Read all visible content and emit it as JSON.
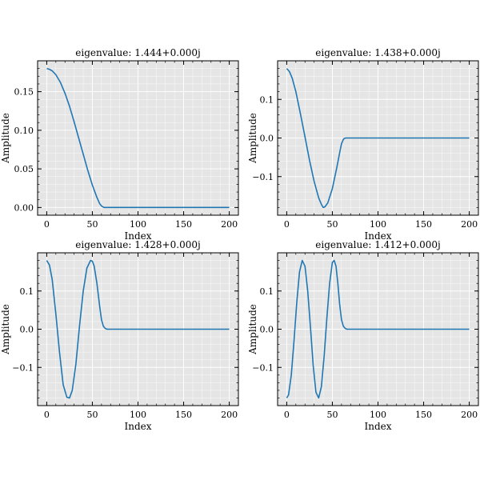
{
  "chart_data": [
    {
      "type": "line",
      "title": "eigenvalue: 1.444+0.000j",
      "xlabel": "Index",
      "ylabel": "Amplitude",
      "xlim": [
        -10,
        210
      ],
      "ylim": [
        -0.01,
        0.19
      ],
      "xticks": [
        0,
        50,
        100,
        150,
        200
      ],
      "yticks": [
        0.0,
        0.05,
        0.1,
        0.15
      ],
      "ytick_labels": [
        "0.00",
        "0.05",
        "0.10",
        "0.15"
      ],
      "grid": true,
      "series": [
        {
          "color": "#1f77b4",
          "x": [
            0,
            3,
            6,
            10,
            15,
            20,
            25,
            30,
            35,
            40,
            45,
            50,
            55,
            58,
            60,
            62,
            63,
            65,
            70,
            80,
            100,
            150,
            200
          ],
          "y": [
            0.18,
            0.179,
            0.177,
            0.172,
            0.162,
            0.148,
            0.131,
            0.111,
            0.09,
            0.069,
            0.048,
            0.029,
            0.013,
            0.005,
            0.002,
            0.0005,
            0.0,
            0.0,
            0.0,
            0.0,
            0.0,
            0.0,
            0.0
          ]
        }
      ]
    },
    {
      "type": "line",
      "title": "eigenvalue: 1.438+0.000j",
      "xlabel": "Index",
      "ylabel": "Amplitude",
      "xlim": [
        -10,
        210
      ],
      "ylim": [
        -0.2,
        0.2
      ],
      "xticks": [
        0,
        50,
        100,
        150,
        200
      ],
      "yticks": [
        -0.1,
        0.0,
        0.1
      ],
      "ytick_labels": [
        "−0.1",
        "0.0",
        "0.1"
      ],
      "grid": true,
      "series": [
        {
          "color": "#1f77b4",
          "x": [
            0,
            3,
            6,
            10,
            15,
            20,
            25,
            30,
            35,
            38,
            40,
            42,
            45,
            50,
            55,
            58,
            60,
            62,
            63,
            65,
            70,
            80,
            100,
            150,
            200
          ],
          "y": [
            0.18,
            0.172,
            0.155,
            0.12,
            0.063,
            0.003,
            -0.058,
            -0.112,
            -0.155,
            -0.172,
            -0.18,
            -0.178,
            -0.168,
            -0.131,
            -0.075,
            -0.038,
            -0.015,
            -0.004,
            -0.001,
            0.0,
            0.0,
            0.0,
            0.0,
            0.0,
            0.0
          ]
        }
      ]
    },
    {
      "type": "line",
      "title": "eigenvalue: 1.428+0.000j",
      "xlabel": "Index",
      "ylabel": "Amplitude",
      "xlim": [
        -10,
        210
      ],
      "ylim": [
        -0.2,
        0.2
      ],
      "xticks": [
        0,
        50,
        100,
        150,
        200
      ],
      "yticks": [
        -0.1,
        0.0,
        0.1
      ],
      "ytick_labels": [
        "−0.1",
        "0.0",
        "0.1"
      ],
      "grid": true,
      "series": [
        {
          "color": "#1f77b4",
          "x": [
            0,
            3,
            6,
            10,
            14,
            18,
            22,
            25,
            28,
            32,
            36,
            40,
            44,
            48,
            50,
            52,
            55,
            58,
            60,
            62,
            64,
            66,
            70,
            80,
            100,
            150,
            200
          ],
          "y": [
            0.18,
            0.168,
            0.13,
            0.04,
            -0.06,
            -0.145,
            -0.178,
            -0.18,
            -0.16,
            -0.09,
            0.01,
            0.1,
            0.16,
            0.18,
            0.178,
            0.165,
            0.12,
            0.06,
            0.025,
            0.008,
            0.002,
            0.0,
            0.0,
            0.0,
            0.0,
            0.0,
            0.0
          ]
        }
      ]
    },
    {
      "type": "line",
      "title": "eigenvalue: 1.412+0.000j",
      "xlabel": "Index",
      "ylabel": "Amplitude",
      "xlim": [
        -10,
        210
      ],
      "ylim": [
        -0.2,
        0.2
      ],
      "xticks": [
        0,
        50,
        100,
        150,
        200
      ],
      "yticks": [
        -0.1,
        0.0,
        0.1
      ],
      "ytick_labels": [
        "−0.1",
        "0.0",
        "0.1"
      ],
      "grid": true,
      "series": [
        {
          "color": "#1f77b4",
          "x": [
            0,
            2,
            5,
            8,
            11,
            14,
            17,
            20,
            23,
            26,
            29,
            32,
            35,
            38,
            41,
            44,
            47,
            50,
            52,
            54,
            56,
            58,
            60,
            62,
            64,
            66,
            70,
            80,
            100,
            150,
            200
          ],
          "y": [
            -0.18,
            -0.172,
            -0.12,
            -0.03,
            0.07,
            0.15,
            0.18,
            0.165,
            0.1,
            0.005,
            -0.095,
            -0.165,
            -0.18,
            -0.15,
            -0.07,
            0.03,
            0.12,
            0.175,
            0.18,
            0.165,
            0.12,
            0.065,
            0.025,
            0.008,
            0.002,
            0.0,
            0.0,
            0.0,
            0.0,
            0.0,
            0.0
          ]
        }
      ]
    }
  ]
}
